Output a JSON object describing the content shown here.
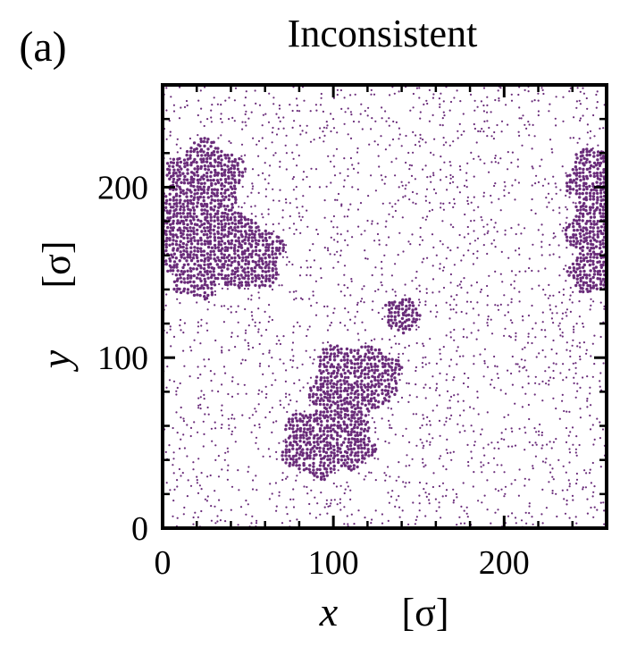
{
  "panel_label": "(a)",
  "chart_data": {
    "type": "scatter",
    "title": "Inconsistent",
    "xlabel_symbol": "x",
    "xlabel_unit": "[σ]",
    "ylabel_symbol": "y",
    "ylabel_unit": "[σ]",
    "xlim": [
      0,
      260
    ],
    "ylim": [
      0,
      260
    ],
    "x_ticks": [
      0,
      100,
      200
    ],
    "y_ticks": [
      0,
      100,
      200
    ],
    "x_tick_labels": [
      "0",
      "100",
      "200"
    ],
    "y_tick_labels": [
      "0",
      "100",
      "200"
    ],
    "grid": false,
    "marker_color": "#6a2c7a",
    "background_density_fraction": 0.14,
    "clusters": [
      {
        "cx": 25,
        "cy": 205,
        "r": 22
      },
      {
        "cx": 12,
        "cy": 175,
        "r": 25
      },
      {
        "cx": 30,
        "cy": 170,
        "r": 20
      },
      {
        "cx": 50,
        "cy": 160,
        "r": 20
      },
      {
        "cx": 20,
        "cy": 150,
        "r": 15
      },
      {
        "cx": 110,
        "cy": 85,
        "r": 23
      },
      {
        "cx": 125,
        "cy": 90,
        "r": 15
      },
      {
        "cx": 90,
        "cy": 50,
        "r": 20
      },
      {
        "cx": 110,
        "cy": 50,
        "r": 15
      },
      {
        "cx": 140,
        "cy": 125,
        "r": 10
      },
      {
        "cx": 255,
        "cy": 205,
        "r": 18
      },
      {
        "cx": 255,
        "cy": 175,
        "r": 18
      },
      {
        "cx": 250,
        "cy": 150,
        "r": 12
      }
    ]
  }
}
